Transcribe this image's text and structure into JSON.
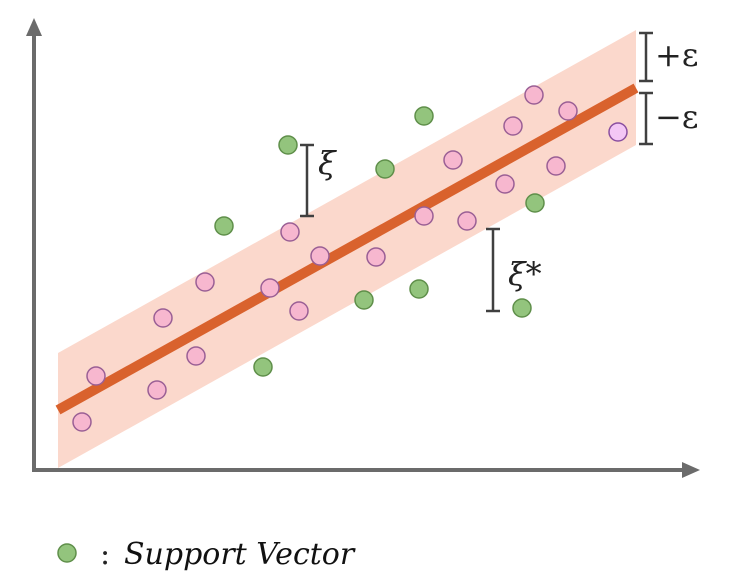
{
  "labels": {
    "slack_upper": "ξ",
    "slack_lower": "ξ*",
    "epsilon_plus": "+ε",
    "epsilon_minus": "−ε"
  },
  "legend": {
    "separator": ":",
    "text": "Support Vector"
  },
  "colors": {
    "axis": "#6b6b6b",
    "tube": "#fbd8cc",
    "regression_line": "#d9622d",
    "point_fill": "#f7b7cf",
    "point_stroke": "#9a5f95",
    "support_vector_fill": "#93c47d",
    "support_vector_stroke": "#5f8f4a",
    "highlight_point_fill": "#f3c7f5",
    "bracket": "#404040"
  }
}
